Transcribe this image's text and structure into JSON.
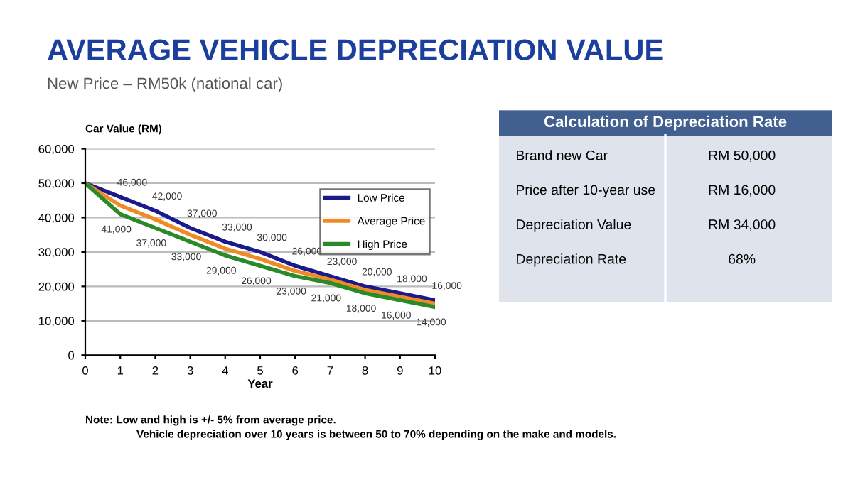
{
  "chart_data": [
    {
      "type": "line",
      "title": "AVERAGE VEHICLE DEPRECIATION VALUE",
      "subtitle": "New Price – RM50k (national car)",
      "xlabel": "Year",
      "ylabel": "Car Value (RM)",
      "x": [
        0,
        1,
        2,
        3,
        4,
        5,
        6,
        7,
        8,
        9,
        10
      ],
      "series": [
        {
          "name": "Low Price",
          "color": "#1a1a8c",
          "values": [
            50000,
            46000,
            42000,
            37000,
            33000,
            30000,
            26000,
            23000,
            20000,
            18000,
            16000
          ],
          "value_labels": [
            null,
            "46,000",
            "42,000",
            "37,000",
            "33,000",
            "30,000",
            "26,000",
            "23,000",
            "20,000",
            "18,000",
            "16,000"
          ]
        },
        {
          "name": "Average Price",
          "color": "#f08a24",
          "values": [
            50000,
            43500,
            39500,
            35000,
            31000,
            28000,
            24500,
            22000,
            19000,
            17000,
            15000
          ]
        },
        {
          "name": "High Price",
          "color": "#2a8a2a",
          "values": [
            50000,
            41000,
            37000,
            33000,
            29000,
            26000,
            23000,
            21000,
            18000,
            16000,
            14000
          ],
          "value_labels": [
            null,
            "41,000",
            "37,000",
            "33,000",
            "29,000",
            "26,000",
            "23,000",
            "21,000",
            "18,000",
            "16,000",
            "14,000"
          ]
        }
      ],
      "xlim": [
        0,
        10
      ],
      "xticks": [
        0,
        1,
        2,
        3,
        4,
        5,
        6,
        7,
        8,
        9,
        10
      ],
      "ylim": [
        0,
        60000
      ],
      "yticks": [
        0,
        {
          "value": 10000,
          "label": "10,000"
        },
        {
          "value": 20000,
          "label": "20,000"
        },
        {
          "value": 30000,
          "label": "30,000"
        },
        {
          "value": 40000,
          "label": "40,000"
        },
        {
          "value": 50000,
          "label": "50,000"
        },
        {
          "value": 60000,
          "label": "60,000"
        }
      ],
      "grid": "y",
      "legend": "top right",
      "marker": "none",
      "line_style": "solid",
      "annotations": [
        "Note: Low and high is +/- 5% from average price.",
        "Vehicle depreciation over 10 years is between 50 to 70% depending on the make and models."
      ]
    },
    {
      "type": "other",
      "title": "Calculation of Depreciation Rate",
      "annotations": [
        "Brand new Car",
        "RM 50,000",
        "Price after 10-year use",
        "RM 16,000",
        "Depreciation Value",
        "RM 34,000",
        "Depreciation Rate",
        "68%"
      ]
    }
  ]
}
